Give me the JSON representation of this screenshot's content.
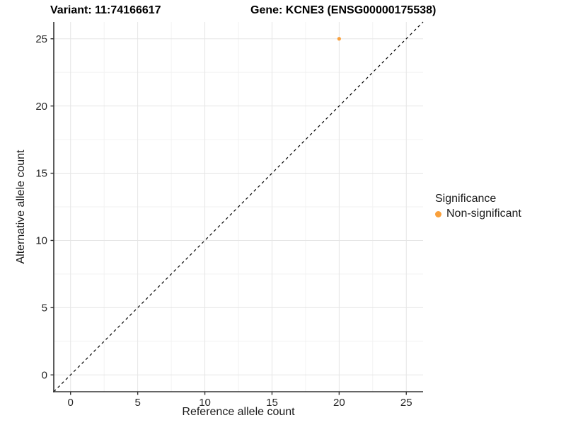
{
  "titles": {
    "variant": "Variant: 11:74166617",
    "gene": "Gene: KCNE3 (ENSG00000175538)"
  },
  "chart_data": {
    "type": "scatter",
    "title_left": "Variant: 11:74166617",
    "title_right": "Gene: KCNE3 (ENSG00000175538)",
    "xlabel": "Reference allele count",
    "ylabel": "Alternative allele count",
    "xlim": [
      -1.25,
      26.25
    ],
    "ylim": [
      -1.25,
      26.25
    ],
    "x_ticks": [
      0,
      5,
      10,
      15,
      20,
      25
    ],
    "y_ticks": [
      0,
      5,
      10,
      15,
      20,
      25
    ],
    "x_minor_ticks": [
      2.5,
      7.5,
      12.5,
      17.5,
      22.5
    ],
    "y_minor_ticks": [
      2.5,
      7.5,
      12.5,
      17.5,
      22.5
    ],
    "grid": true,
    "series": [
      {
        "name": "Non-significant",
        "color": "#F9A03C",
        "points": [
          [
            20,
            25
          ]
        ]
      }
    ],
    "reference_line": {
      "type": "identity",
      "from": [
        -1.25,
        -1.25
      ],
      "to": [
        26.25,
        26.25
      ],
      "style": "dashed",
      "color": "#000000"
    },
    "legend": {
      "title": "Significance",
      "position": "right",
      "items": [
        {
          "label": "Non-significant",
          "color": "#F9A03C",
          "marker": "circle"
        }
      ]
    }
  },
  "colors": {
    "background": "#FFFFFF",
    "grid_major": "#E5E5E5",
    "grid_minor": "#F2F2F2",
    "axis_line": "#333333",
    "tick_mark": "#333333",
    "tick_text": "#262626",
    "title_text": "#000000"
  }
}
